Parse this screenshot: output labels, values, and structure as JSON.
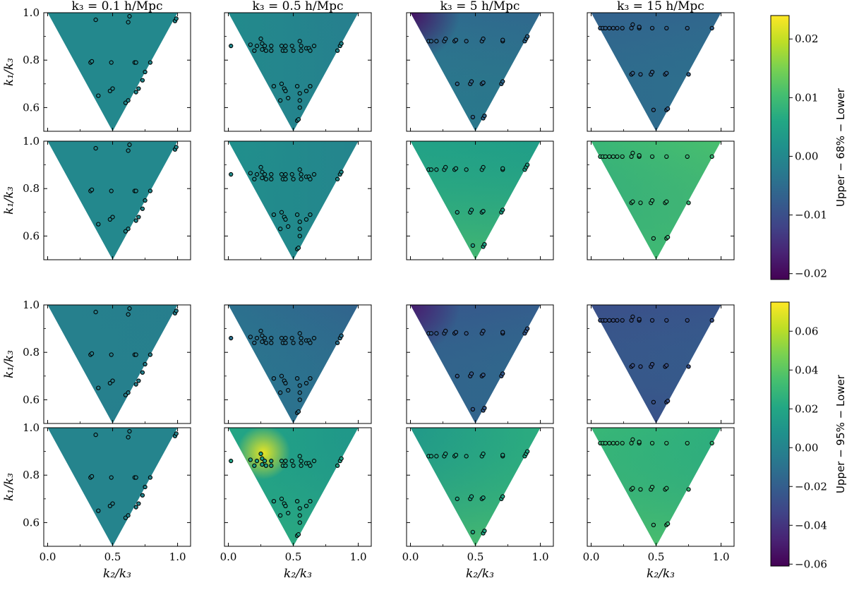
{
  "figure": {
    "column_titles": [
      "k₃ = 0.1 h/Mpc",
      "k₃ = 0.5 h/Mpc",
      "k₃ = 5 h/Mpc",
      "k₃ = 15 h/Mpc"
    ],
    "xlabel": "k₂/k₃",
    "ylabel": "k₁/k₃",
    "x_ticks": [
      "0.0",
      "0.5",
      "1.0"
    ],
    "y_ticks": [
      "0.6",
      "0.8",
      "1.0"
    ],
    "colorbars": [
      {
        "label": "Upper − 68% − Lower",
        "min": -0.021,
        "max": 0.024,
        "ticks": [
          "0.02",
          "0.01",
          "0.00",
          "−0.01",
          "−0.02"
        ],
        "tick_values": [
          0.02,
          0.01,
          0.0,
          -0.01,
          -0.02
        ]
      },
      {
        "label": "Upper − 95% − Lower",
        "min": -0.061,
        "max": 0.075,
        "ticks": [
          "0.06",
          "0.04",
          "0.02",
          "0.00",
          "−0.02",
          "−0.04",
          "−0.06"
        ],
        "tick_values": [
          0.06,
          0.04,
          0.02,
          0.0,
          -0.02,
          -0.04,
          -0.06
        ]
      }
    ],
    "colormap": "viridis"
  },
  "chart_data": {
    "type": "heatmap",
    "description_of_axes": {
      "x": "k₂/k₃",
      "y": "k₁/k₃",
      "xlim": [
        -0.03,
        1.1
      ],
      "ylim": [
        0.5,
        1.0
      ]
    },
    "panels": [
      {
        "row": 0,
        "col": 0,
        "cbar": 0,
        "a": 0.0,
        "b": 0.0,
        "c": 0.0,
        "dot": 0.0
      },
      {
        "row": 0,
        "col": 1,
        "cbar": 0,
        "a": 0.0005,
        "b": -0.002,
        "c": 0.0,
        "dot": 0.0
      },
      {
        "row": 0,
        "col": 2,
        "cbar": 0,
        "a": -0.005,
        "b": -0.006,
        "c": 0.004,
        "dot": -0.006,
        "corner": -0.019
      },
      {
        "row": 0,
        "col": 3,
        "cbar": 0,
        "a": -0.007,
        "b": -0.006,
        "c": 0.002,
        "dot": -0.007
      },
      {
        "row": 1,
        "col": 0,
        "cbar": 0,
        "a": 0.0,
        "b": 0.0,
        "c": 0.0,
        "dot": 0.0
      },
      {
        "row": 1,
        "col": 1,
        "cbar": 0,
        "a": 0.0015,
        "b": -0.001,
        "c": 0.0,
        "dot": 0.001
      },
      {
        "row": 1,
        "col": 2,
        "cbar": 0,
        "a": 0.005,
        "b": 0.004,
        "c": 0.008,
        "dot": 0.005
      },
      {
        "row": 1,
        "col": 3,
        "cbar": 0,
        "a": 0.009,
        "b": 0.011,
        "c": 0.0,
        "dot": 0.009
      },
      {
        "row": 2,
        "col": 0,
        "cbar": 1,
        "a": -0.002,
        "b": -0.003,
        "c": 0.0,
        "dot": -0.002
      },
      {
        "row": 2,
        "col": 1,
        "cbar": 1,
        "a": -0.01,
        "b": -0.018,
        "c": 0.006,
        "dot": -0.01
      },
      {
        "row": 2,
        "col": 2,
        "cbar": 1,
        "a": -0.024,
        "b": -0.02,
        "c": 0.008,
        "dot": -0.022,
        "corner": -0.05
      },
      {
        "row": 2,
        "col": 3,
        "cbar": 1,
        "a": -0.028,
        "b": -0.025,
        "c": 0.0,
        "dot": -0.027
      },
      {
        "row": 3,
        "col": 0,
        "cbar": 1,
        "a": 0.0,
        "b": 0.0,
        "c": 0.0,
        "dot": 0.0
      },
      {
        "row": 3,
        "col": 1,
        "cbar": 1,
        "a": 0.02,
        "b": 0.01,
        "c": 0.012,
        "dot": 0.018,
        "hotspot": 0.07
      },
      {
        "row": 3,
        "col": 2,
        "cbar": 1,
        "a": 0.012,
        "b": 0.025,
        "c": 0.022,
        "dot": 0.02
      },
      {
        "row": 3,
        "col": 3,
        "cbar": 1,
        "a": 0.03,
        "b": 0.025,
        "c": 0.012,
        "dot": 0.03
      }
    ],
    "point_sets": [
      [
        [
          0.37,
          0.97
        ],
        [
          0.62,
          0.96
        ],
        [
          0.63,
          0.985
        ],
        [
          0.98,
          0.965
        ],
        [
          0.99,
          0.975
        ],
        [
          0.33,
          0.79
        ],
        [
          0.34,
          0.795
        ],
        [
          0.49,
          0.79
        ],
        [
          0.67,
          0.79
        ],
        [
          0.68,
          0.79
        ],
        [
          0.79,
          0.79
        ],
        [
          0.75,
          0.75
        ],
        [
          0.73,
          0.715
        ],
        [
          0.7,
          0.68
        ],
        [
          0.68,
          0.665
        ],
        [
          0.39,
          0.65
        ],
        [
          0.48,
          0.67
        ],
        [
          0.5,
          0.68
        ],
        [
          0.6,
          0.62
        ],
        [
          0.62,
          0.63
        ]
      ],
      [
        [
          0.02,
          0.86
        ],
        [
          0.17,
          0.865
        ],
        [
          0.2,
          0.84
        ],
        [
          0.22,
          0.86
        ],
        [
          0.25,
          0.89
        ],
        [
          0.26,
          0.87
        ],
        [
          0.26,
          0.845
        ],
        [
          0.28,
          0.86
        ],
        [
          0.29,
          0.84
        ],
        [
          0.33,
          0.86
        ],
        [
          0.33,
          0.84
        ],
        [
          0.41,
          0.86
        ],
        [
          0.42,
          0.84
        ],
        [
          0.44,
          0.86
        ],
        [
          0.44,
          0.84
        ],
        [
          0.49,
          0.86
        ],
        [
          0.5,
          0.84
        ],
        [
          0.55,
          0.88
        ],
        [
          0.56,
          0.86
        ],
        [
          0.56,
          0.84
        ],
        [
          0.6,
          0.85
        ],
        [
          0.62,
          0.85
        ],
        [
          0.63,
          0.84
        ],
        [
          0.66,
          0.86
        ],
        [
          0.86,
          0.86
        ],
        [
          0.87,
          0.87
        ],
        [
          0.84,
          0.84
        ],
        [
          0.35,
          0.69
        ],
        [
          0.41,
          0.7
        ],
        [
          0.43,
          0.68
        ],
        [
          0.44,
          0.67
        ],
        [
          0.53,
          0.69
        ],
        [
          0.55,
          0.66
        ],
        [
          0.6,
          0.67
        ],
        [
          0.63,
          0.69
        ],
        [
          0.4,
          0.63
        ],
        [
          0.46,
          0.64
        ],
        [
          0.55,
          0.63
        ],
        [
          0.55,
          0.6
        ],
        [
          0.53,
          0.545
        ],
        [
          0.54,
          0.55
        ]
      ],
      [
        [
          0.14,
          0.88
        ],
        [
          0.16,
          0.88
        ],
        [
          0.2,
          0.88
        ],
        [
          0.26,
          0.88
        ],
        [
          0.27,
          0.89
        ],
        [
          0.34,
          0.88
        ],
        [
          0.35,
          0.885
        ],
        [
          0.43,
          0.88
        ],
        [
          0.55,
          0.88
        ],
        [
          0.56,
          0.89
        ],
        [
          0.71,
          0.88
        ],
        [
          0.71,
          0.885
        ],
        [
          0.88,
          0.88
        ],
        [
          0.89,
          0.89
        ],
        [
          0.9,
          0.9
        ],
        [
          0.36,
          0.7
        ],
        [
          0.46,
          0.7
        ],
        [
          0.47,
          0.71
        ],
        [
          0.55,
          0.7
        ],
        [
          0.56,
          0.705
        ],
        [
          0.7,
          0.7
        ],
        [
          0.71,
          0.71
        ],
        [
          0.48,
          0.56
        ],
        [
          0.56,
          0.555
        ],
        [
          0.57,
          0.565
        ]
      ],
      [
        [
          0.07,
          0.935
        ],
        [
          0.09,
          0.935
        ],
        [
          0.11,
          0.935
        ],
        [
          0.14,
          0.935
        ],
        [
          0.17,
          0.935
        ],
        [
          0.2,
          0.935
        ],
        [
          0.24,
          0.935
        ],
        [
          0.31,
          0.935
        ],
        [
          0.32,
          0.95
        ],
        [
          0.37,
          0.935
        ],
        [
          0.37,
          0.94
        ],
        [
          0.47,
          0.935
        ],
        [
          0.58,
          0.935
        ],
        [
          0.74,
          0.935
        ],
        [
          0.93,
          0.935
        ],
        [
          0.31,
          0.74
        ],
        [
          0.32,
          0.745
        ],
        [
          0.38,
          0.74
        ],
        [
          0.46,
          0.74
        ],
        [
          0.47,
          0.75
        ],
        [
          0.57,
          0.74
        ],
        [
          0.58,
          0.745
        ],
        [
          0.75,
          0.74
        ],
        [
          0.48,
          0.59
        ],
        [
          0.58,
          0.59
        ],
        [
          0.59,
          0.595
        ]
      ]
    ]
  }
}
